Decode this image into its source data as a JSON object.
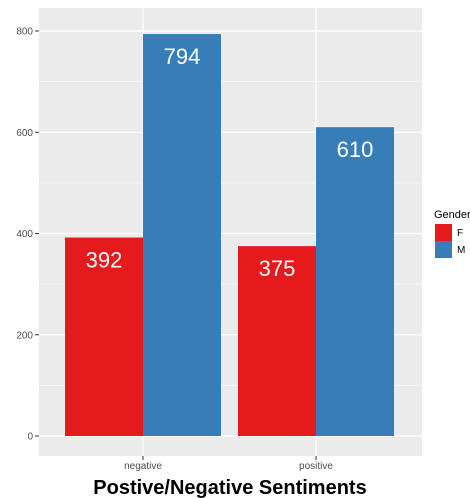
{
  "chart_data": {
    "type": "bar",
    "categories": [
      "negative",
      "positive"
    ],
    "series": [
      {
        "name": "F",
        "values": [
          392,
          375
        ],
        "color": "#E41A1C"
      },
      {
        "name": "M",
        "values": [
          794,
          610
        ],
        "color": "#377EB8"
      }
    ],
    "title": "",
    "xlabel": "Postive/Negative Sentiments",
    "ylabel": "",
    "ylim": [
      0,
      800
    ],
    "yticks": [
      0,
      200,
      400,
      600,
      800
    ],
    "grid": true,
    "legend": {
      "title": "Gender",
      "position": "right"
    },
    "panel_background": "#EBEBEB"
  }
}
